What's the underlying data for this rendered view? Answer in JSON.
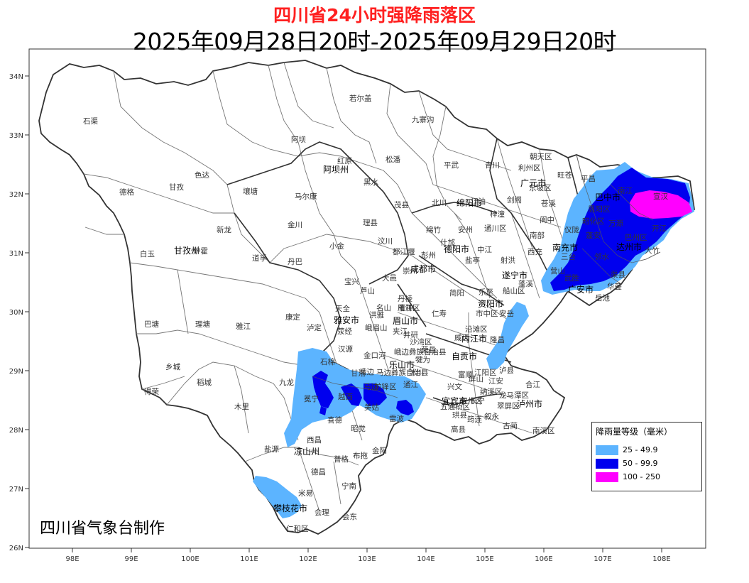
{
  "title": "四川省24小时强降雨落区",
  "subtitle": "2025年09月28日20时-2025年09月29日20时",
  "credit": "四川省气象台制作",
  "legend": {
    "title": "降雨量等级（毫米）",
    "items": [
      {
        "label": "25 - 49.9",
        "color": "#5cb4ff"
      },
      {
        "label": "50 - 99.9",
        "color": "#0000ff"
      },
      {
        "label": "100 - 250",
        "color": "#ff00ff"
      }
    ]
  },
  "axes": {
    "lat_ticks": [
      "34N",
      "33N",
      "32N",
      "31N",
      "30N",
      "29N",
      "28N",
      "27N",
      "26N"
    ],
    "lon_ticks": [
      "98E",
      "99E",
      "100E",
      "101E",
      "102E",
      "103E",
      "104E",
      "105E",
      "106E",
      "107E",
      "108E"
    ]
  },
  "cities": [
    "阿坝州",
    "甘孜州",
    "雅安市",
    "乐山市",
    "凉山州",
    "攀枝花市",
    "成都市",
    "德阳市",
    "绵阳市",
    "广元市",
    "巴中市",
    "达州市",
    "南充市",
    "遂宁市",
    "广安市",
    "资阳市",
    "内江市",
    "自贡市",
    "宜宾市",
    "泸州市",
    "眉山市"
  ],
  "counties": [
    "石渠",
    "若尔盖",
    "九寨沟",
    "阿坝",
    "红原",
    "松潘",
    "平武",
    "青川",
    "朝天区",
    "利州区",
    "旺苍",
    "德格",
    "色达",
    "甘孜",
    "马尔康",
    "黑水",
    "茂县",
    "北川",
    "壤塘",
    "金川",
    "理县",
    "汶川",
    "炉霍",
    "道孚",
    "丹巴",
    "小金",
    "白玉",
    "新龙",
    "巴塘",
    "理塘",
    "雅江",
    "康定",
    "泸定",
    "天全",
    "荥经",
    "汉源",
    "乡城",
    "稻城",
    "得荣",
    "九龙",
    "木里",
    "盐源",
    "西昌",
    "冕宁",
    "石棉",
    "越西",
    "甘洛",
    "喜德",
    "昭觉",
    "美姑",
    "雷波",
    "普格",
    "布拖",
    "金阳",
    "德昌",
    "宁南",
    "米易",
    "会理",
    "会东",
    "仁和区",
    "宝兴",
    "芦山",
    "名山",
    "大邑",
    "崇州",
    "都江堰",
    "彭州",
    "什邡",
    "绵竹",
    "安州",
    "江油",
    "梓潼",
    "剑阁",
    "苍溪",
    "阆中",
    "南部",
    "仪陇",
    "西充",
    "射洪",
    "蓬溪",
    "船山区",
    "安岳",
    "乐至",
    "简阳",
    "仁寿",
    "井研",
    "犍为",
    "沐川",
    "马边",
    "峨边",
    "金口河",
    "峨眉山",
    "夹江",
    "洪雅",
    "丹棱",
    "青神",
    "威远",
    "荣县",
    "富顺",
    "隆昌",
    "泸县",
    "合江",
    "纳溪区",
    "江安",
    "长宁",
    "珙县",
    "筠连",
    "高县",
    "兴文",
    "叙永",
    "古蔺",
    "南溪区",
    "屏山",
    "通江",
    "南江",
    "平昌",
    "万源",
    "宣汉",
    "开江",
    "大竹",
    "渠县",
    "邻水",
    "岳池",
    "武胜",
    "营山",
    "蓬安",
    "三台",
    "中江",
    "盐亭",
    "通川区",
    "巴州区",
    "恩阳区",
    "昭化区",
    "东坡区",
    "雁江区",
    "市中区",
    "沿滩区",
    "江阳区",
    "龙马潭区",
    "翠屏区",
    "叙州区",
    "五通桥区",
    "沙湾区",
    "峨边彝族自治县",
    "马边彝族自治县",
    "前锋区",
    "华蓥"
  ]
}
